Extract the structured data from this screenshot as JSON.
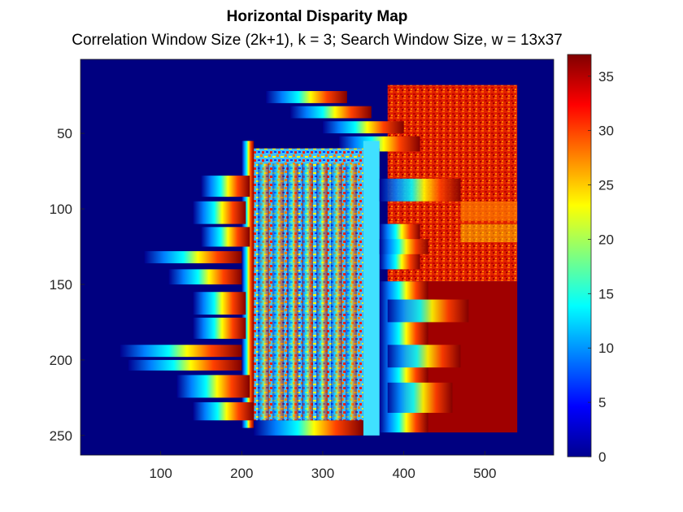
{
  "chart_data": {
    "type": "heatmap",
    "title": "Horizontal Disparity Map",
    "subtitle": "Correlation Window Size (2k+1), k = 3; Search Window Size, w = 13x37",
    "xlabel": "",
    "ylabel": "",
    "xlim": [
      1,
      585
    ],
    "ylim": [
      1,
      263
    ],
    "y_reversed": true,
    "xticks": [
      "100",
      "200",
      "300",
      "400",
      "500"
    ],
    "xtick_values": [
      100,
      200,
      300,
      400,
      500
    ],
    "yticks": [
      "50",
      "100",
      "150",
      "200",
      "250"
    ],
    "ytick_values": [
      50,
      100,
      150,
      200,
      250
    ],
    "colormap": "jet",
    "clim": [
      0,
      37
    ],
    "colorbar_ticks": [
      "0",
      "5",
      "10",
      "15",
      "20",
      "25",
      "30",
      "35"
    ],
    "colorbar_tick_values": [
      0,
      5,
      10,
      15,
      20,
      25,
      30,
      35
    ],
    "background_value": 0,
    "regions": [
      {
        "x": [
          200,
          370
        ],
        "y": [
          55,
          250
        ],
        "value": 15,
        "note": "central frame"
      },
      {
        "x": [
          380,
          540
        ],
        "y": [
          18,
          145
        ],
        "value": 33,
        "note": "upper right textured region"
      },
      {
        "x": [
          420,
          540
        ],
        "y": [
          148,
          248
        ],
        "value": 37,
        "note": "lower right block"
      },
      {
        "x": [
          100,
          200
        ],
        "y": [
          70,
          240
        ],
        "value": 18,
        "note": "left streaks"
      },
      {
        "x": [
          300,
          430
        ],
        "y": [
          20,
          60
        ],
        "value": 28,
        "note": "upper streaks"
      }
    ]
  }
}
